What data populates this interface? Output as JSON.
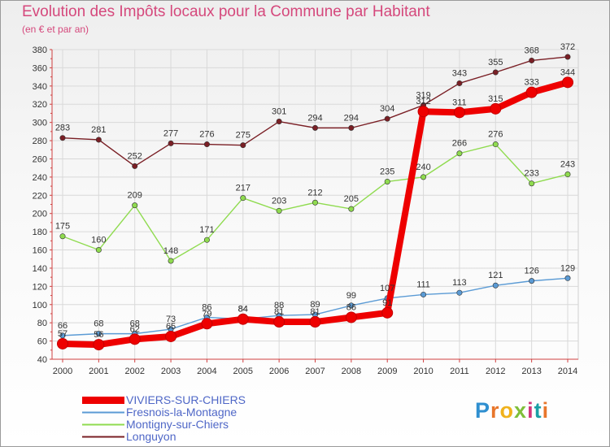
{
  "title": "Evolution des Impôts locaux pour la Commune par Habitant",
  "subtitle": "(en € et par an)",
  "logo_text": "Proxiti",
  "chart_data": {
    "type": "line",
    "title": "Evolution des Impôts locaux pour la Commune par Habitant",
    "subtitle": "(en € et par an)",
    "xlabel": "",
    "ylabel": "",
    "x": [
      2000,
      2001,
      2002,
      2003,
      2004,
      2005,
      2006,
      2007,
      2008,
      2009,
      2010,
      2011,
      2012,
      2013,
      2014
    ],
    "ylim": [
      40,
      380
    ],
    "yticks": [
      40,
      60,
      80,
      100,
      120,
      140,
      160,
      180,
      200,
      220,
      240,
      260,
      280,
      300,
      320,
      340,
      360,
      380
    ],
    "grid": true,
    "legend_position": "bottom-left",
    "series": [
      {
        "name": "VIVIERS-SUR-CHIERS",
        "color": "#ee0000",
        "values": [
          57,
          56,
          62,
          65,
          79,
          84,
          81,
          81,
          86,
          91,
          312,
          311,
          315,
          333,
          344
        ]
      },
      {
        "name": "Fresnois-la-Montagne",
        "color": "#5b9bd5",
        "values": [
          66,
          68,
          68,
          73,
          86,
          84,
          88,
          89,
          99,
          107,
          111,
          113,
          121,
          126,
          129
        ]
      },
      {
        "name": "Montigny-sur-Chiers",
        "color": "#8fdb4f",
        "values": [
          175,
          160,
          209,
          148,
          171,
          217,
          203,
          212,
          205,
          235,
          240,
          266,
          276,
          233,
          243
        ]
      },
      {
        "name": "Longuyon",
        "color": "#7a1f25",
        "values": [
          283,
          281,
          252,
          277,
          276,
          275,
          301,
          294,
          294,
          304,
          319,
          343,
          355,
          368,
          372
        ]
      }
    ]
  }
}
